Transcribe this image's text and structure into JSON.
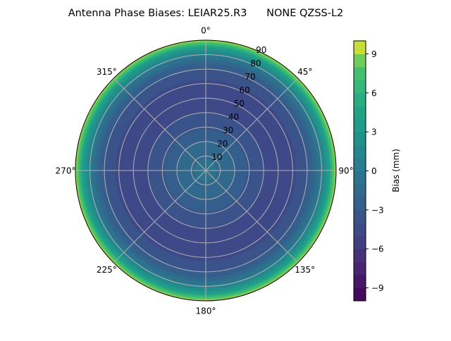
{
  "chart_data": {
    "type": "polar-contour",
    "title": "Antenna Phase Biases: LEIAR25.R3      NONE QZSS-L2",
    "angular_ticks": [
      "0°",
      "45°",
      "90°",
      "135°",
      "180°",
      "225°",
      "270°",
      "315°"
    ],
    "radial_ticks": [
      "10",
      "20",
      "30",
      "40",
      "50",
      "60",
      "70",
      "80",
      "90"
    ],
    "radial_range": [
      0,
      90
    ],
    "grid": true,
    "colormap": "viridis",
    "colorbar": {
      "label": "Bias (mm)",
      "range": [
        -10,
        10
      ],
      "levels_step": 1,
      "ticks": [
        "−9",
        "−6",
        "−3",
        "0",
        "3",
        "6",
        "9"
      ],
      "tick_values": [
        -9,
        -6,
        -3,
        0,
        3,
        6,
        9
      ]
    },
    "radial_profile": {
      "zenith_deg": [
        0,
        5,
        10,
        15,
        20,
        25,
        30,
        35,
        40,
        45,
        50,
        55,
        60,
        65,
        70,
        75,
        80,
        85,
        90
      ],
      "bias_mm": [
        -0.5,
        -0.8,
        -1.2,
        -1.6,
        -2.0,
        -2.6,
        -3.2,
        -3.6,
        -4.0,
        -4.3,
        -4.4,
        -4.4,
        -4.2,
        -3.8,
        -3.0,
        -1.8,
        0.5,
        4.0,
        9.8
      ]
    }
  }
}
